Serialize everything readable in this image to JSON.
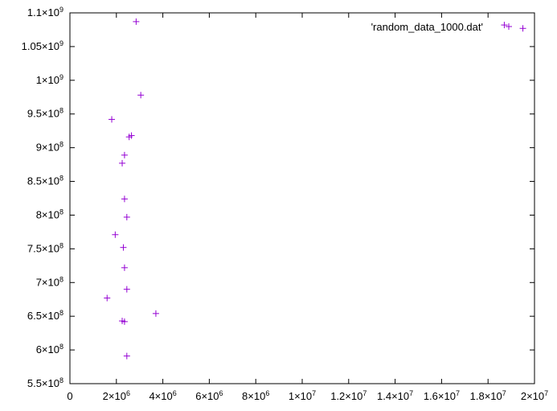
{
  "chart_data": {
    "type": "scatter",
    "series": [
      {
        "name": "'random_data_1000.dat'",
        "color": "#9400d3",
        "marker": "plus",
        "points": [
          [
            2850000,
            1087000000
          ],
          [
            3050000,
            978000000
          ],
          [
            1800000,
            942000000
          ],
          [
            2550000,
            916000000
          ],
          [
            2650000,
            918000000
          ],
          [
            2350000,
            889000000
          ],
          [
            2250000,
            877000000
          ],
          [
            2350000,
            824000000
          ],
          [
            2450000,
            797000000
          ],
          [
            1950000,
            771000000
          ],
          [
            2300000,
            752000000
          ],
          [
            2350000,
            722000000
          ],
          [
            2450000,
            690000000
          ],
          [
            1600000,
            677000000
          ],
          [
            3700000,
            654000000
          ],
          [
            2250000,
            643000000
          ],
          [
            2350000,
            642000000
          ],
          [
            2450000,
            591000000
          ],
          [
            18700000,
            1082000000
          ],
          [
            19500000,
            1077000000
          ]
        ]
      }
    ],
    "xlim": [
      0,
      20000000
    ],
    "ylim": [
      550000000,
      1100000000
    ],
    "x_ticks": [
      0,
      2000000,
      4000000,
      6000000,
      8000000,
      10000000,
      12000000,
      14000000,
      16000000,
      18000000,
      20000000
    ],
    "x_tick_labels": [
      {
        "base": "0",
        "exp": ""
      },
      {
        "base": "2×10",
        "exp": "6"
      },
      {
        "base": "4×10",
        "exp": "6"
      },
      {
        "base": "6×10",
        "exp": "6"
      },
      {
        "base": "8×10",
        "exp": "6"
      },
      {
        "base": "1×10",
        "exp": "7"
      },
      {
        "base": "1.2×10",
        "exp": "7"
      },
      {
        "base": "1.4×10",
        "exp": "7"
      },
      {
        "base": "1.6×10",
        "exp": "7"
      },
      {
        "base": "1.8×10",
        "exp": "7"
      },
      {
        "base": "2×10",
        "exp": "7"
      }
    ],
    "y_ticks": [
      550000000,
      600000000,
      650000000,
      700000000,
      750000000,
      800000000,
      850000000,
      900000000,
      950000000,
      1000000000,
      1050000000,
      1100000000
    ],
    "y_tick_labels": [
      {
        "base": "5.5×10",
        "exp": "8"
      },
      {
        "base": "6×10",
        "exp": "8"
      },
      {
        "base": "6.5×10",
        "exp": "8"
      },
      {
        "base": "7×10",
        "exp": "8"
      },
      {
        "base": "7.5×10",
        "exp": "8"
      },
      {
        "base": "8×10",
        "exp": "8"
      },
      {
        "base": "8.5×10",
        "exp": "8"
      },
      {
        "base": "9×10",
        "exp": "8"
      },
      {
        "base": "9.5×10",
        "exp": "8"
      },
      {
        "base": "1×10",
        "exp": "9"
      },
      {
        "base": "1.05×10",
        "exp": "9"
      },
      {
        "base": "1.1×10",
        "exp": "9"
      }
    ],
    "grid": false,
    "legend": "top-right"
  }
}
